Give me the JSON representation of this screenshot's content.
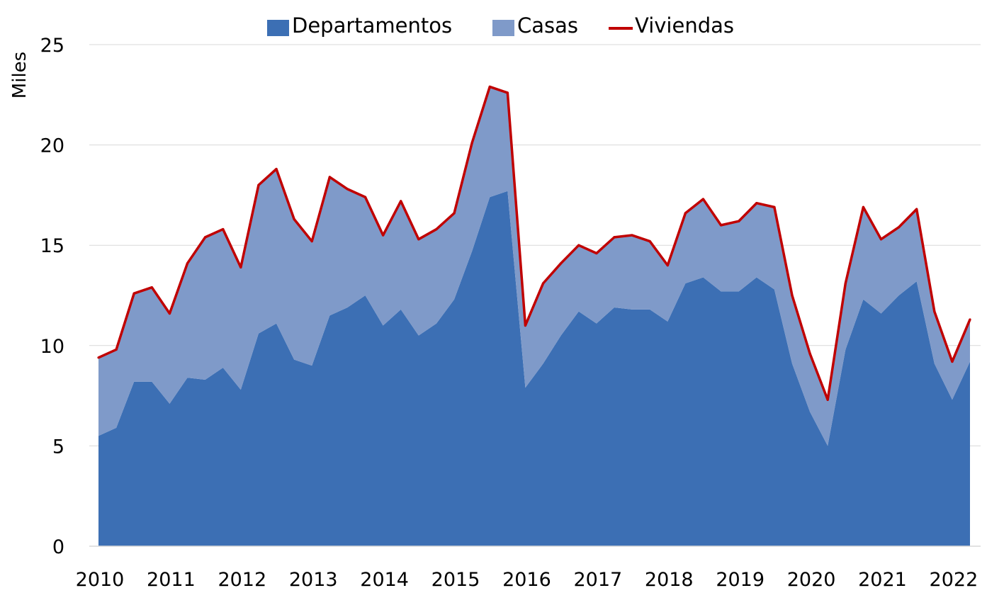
{
  "chart_data": {
    "type": "area",
    "ylabel": "Miles",
    "ylim": [
      0,
      25
    ],
    "yticks": [
      "0",
      "5",
      "10",
      "15",
      "20",
      "25"
    ],
    "x_tick_labels": [
      "2010",
      "2011",
      "2012",
      "2013",
      "2014",
      "2015",
      "2016",
      "2017",
      "2018",
      "2019",
      "2020",
      "2021",
      "2022"
    ],
    "grid": "horizontal",
    "legend_position": "top",
    "x": [
      "2010-Q1",
      "2010-Q2",
      "2010-Q3",
      "2010-Q4",
      "2011-Q1",
      "2011-Q2",
      "2011-Q3",
      "2011-Q4",
      "2012-Q1",
      "2012-Q2",
      "2012-Q3",
      "2012-Q4",
      "2013-Q1",
      "2013-Q2",
      "2013-Q3",
      "2013-Q4",
      "2014-Q1",
      "2014-Q2",
      "2014-Q3",
      "2014-Q4",
      "2015-Q1",
      "2015-Q2",
      "2015-Q3",
      "2015-Q4",
      "2016-Q1",
      "2016-Q2",
      "2016-Q3",
      "2016-Q4",
      "2017-Q1",
      "2017-Q2",
      "2017-Q3",
      "2017-Q4",
      "2018-Q1",
      "2018-Q2",
      "2018-Q3",
      "2018-Q4",
      "2019-Q1",
      "2019-Q2",
      "2019-Q3",
      "2019-Q4",
      "2020-Q1",
      "2020-Q2",
      "2020-Q3",
      "2020-Q4",
      "2021-Q1",
      "2021-Q2",
      "2021-Q3",
      "2021-Q4",
      "2022-Q1",
      "2022-Q2"
    ],
    "series": [
      {
        "name": "Departamentos",
        "kind": "area",
        "color": "#3c6fb4",
        "values": [
          5.5,
          5.9,
          8.2,
          8.2,
          7.1,
          8.4,
          8.3,
          8.9,
          7.8,
          10.6,
          11.1,
          9.3,
          9.0,
          11.5,
          11.9,
          12.5,
          11.0,
          11.8,
          10.5,
          11.1,
          12.3,
          14.7,
          17.4,
          17.7,
          7.9,
          9.1,
          10.5,
          11.7,
          11.1,
          11.9,
          11.8,
          11.8,
          11.2,
          13.1,
          13.4,
          12.7,
          12.7,
          13.4,
          12.8,
          9.1,
          6.7,
          5.0,
          9.8,
          12.3,
          11.6,
          12.5,
          13.2,
          9.1,
          7.3,
          9.2
        ]
      },
      {
        "name": "Casas",
        "kind": "area",
        "color": "#7f9ac9",
        "values": [
          3.9,
          3.9,
          4.4,
          4.7,
          4.5,
          5.7,
          7.1,
          6.9,
          6.1,
          7.4,
          7.7,
          7.0,
          6.2,
          6.9,
          5.9,
          4.9,
          4.5,
          5.4,
          4.8,
          4.7,
          4.3,
          5.4,
          5.5,
          4.9,
          3.1,
          4.0,
          3.6,
          3.3,
          3.5,
          3.5,
          3.7,
          3.4,
          2.8,
          3.5,
          3.9,
          3.3,
          3.5,
          3.7,
          4.1,
          3.4,
          2.9,
          2.3,
          3.3,
          4.6,
          3.7,
          3.4,
          3.6,
          2.6,
          1.9,
          2.1
        ]
      },
      {
        "name": "Viviendas",
        "kind": "line",
        "color": "#c00000",
        "values": [
          9.4,
          9.8,
          12.6,
          12.9,
          11.6,
          14.1,
          15.4,
          15.8,
          13.9,
          18.0,
          18.8,
          16.3,
          15.2,
          18.4,
          17.8,
          17.4,
          15.5,
          17.2,
          15.3,
          15.8,
          16.6,
          20.1,
          22.9,
          22.6,
          11.0,
          13.1,
          14.1,
          15.0,
          14.6,
          15.4,
          15.5,
          15.2,
          14.0,
          16.6,
          17.3,
          16.0,
          16.2,
          17.1,
          16.9,
          12.5,
          9.6,
          7.3,
          13.1,
          16.9,
          15.3,
          15.9,
          16.8,
          11.7,
          9.2,
          11.3
        ]
      }
    ]
  }
}
